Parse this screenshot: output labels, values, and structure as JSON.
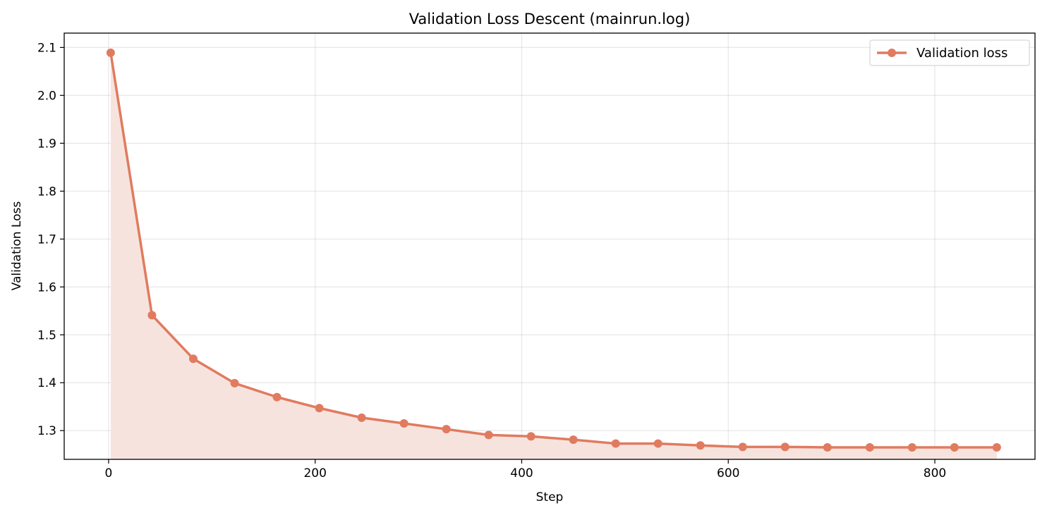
{
  "chart_data": {
    "type": "line",
    "title": "Validation Loss Descent (mainrun.log)",
    "xlabel": "Step",
    "ylabel": "Validation Loss",
    "xlim": [
      -43,
      897
    ],
    "ylim": [
      1.24,
      2.13
    ],
    "xticks": [
      0,
      200,
      400,
      600,
      800
    ],
    "yticks": [
      1.3,
      1.4,
      1.5,
      1.6,
      1.7,
      1.8,
      1.9,
      2.0,
      2.1
    ],
    "xtick_labels": [
      "0",
      "200",
      "400",
      "600",
      "800"
    ],
    "ytick_labels": [
      "1.3",
      "1.4",
      "1.5",
      "1.6",
      "1.7",
      "1.8",
      "1.9",
      "2.0",
      "2.1"
    ],
    "grid": true,
    "legend_position": "top-right",
    "fill_under": true,
    "series": [
      {
        "name": "Validation loss",
        "color": "#e07b5f",
        "fill_color": "#f7e3de",
        "x": [
          2,
          42,
          82,
          122,
          163,
          204,
          245,
          286,
          327,
          368,
          409,
          450,
          491,
          532,
          573,
          614,
          655,
          696,
          737,
          778,
          819,
          860
        ],
        "y": [
          2.089,
          1.541,
          1.45,
          1.399,
          1.37,
          1.347,
          1.327,
          1.315,
          1.303,
          1.291,
          1.288,
          1.281,
          1.273,
          1.273,
          1.269,
          1.266,
          1.266,
          1.265,
          1.265,
          1.265,
          1.265,
          1.265
        ]
      }
    ]
  }
}
